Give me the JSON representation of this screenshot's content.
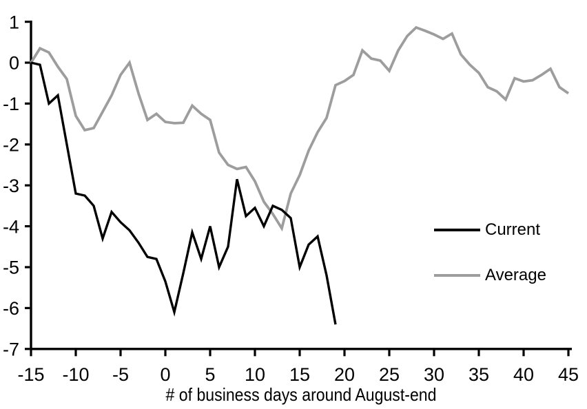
{
  "chart_data": {
    "type": "line",
    "title": "",
    "xlabel": "# of business days around August-end",
    "ylabel": "",
    "xlim": [
      -15,
      45
    ],
    "ylim": [
      -7,
      1
    ],
    "x_ticks": [
      -15,
      -10,
      -5,
      0,
      5,
      10,
      15,
      20,
      25,
      30,
      35,
      40,
      45
    ],
    "y_ticks": [
      1,
      0,
      -1,
      -2,
      -3,
      -4,
      -5,
      -6,
      -7
    ],
    "grid": false,
    "legend_position": "center-right",
    "series": [
      {
        "name": "Current",
        "color": "#000000",
        "x": [
          -15,
          -14,
          -13,
          -12,
          -11,
          -10,
          -9,
          -8,
          -7,
          -6,
          -5,
          -4,
          -3,
          -2,
          -1,
          0,
          1,
          2,
          3,
          4,
          5,
          6,
          7,
          8,
          9,
          10,
          11,
          12,
          13,
          14,
          15,
          16,
          17,
          18,
          19
        ],
        "values": [
          0,
          -0.05,
          -1.0,
          -0.8,
          -2.0,
          -3.2,
          -3.25,
          -3.5,
          -4.3,
          -3.65,
          -3.9,
          -4.1,
          -4.4,
          -4.75,
          -4.8,
          -5.35,
          -6.1,
          -5.15,
          -4.15,
          -4.8,
          -4.0,
          -5.0,
          -4.5,
          -2.85,
          -3.75,
          -3.55,
          -4.0,
          -3.5,
          -3.6,
          -3.8,
          -5.0,
          -4.45,
          -4.25,
          -5.2,
          -6.4
        ]
      },
      {
        "name": "Average",
        "color": "#9d9d9d",
        "x": [
          -15,
          -14,
          -13,
          -12,
          -11,
          -10,
          -9,
          -8,
          -7,
          -6,
          -5,
          -4,
          -3,
          -2,
          -1,
          0,
          1,
          2,
          3,
          4,
          5,
          6,
          7,
          8,
          9,
          10,
          11,
          12,
          13,
          14,
          15,
          16,
          17,
          18,
          19,
          20,
          21,
          22,
          23,
          24,
          25,
          26,
          27,
          28,
          29,
          30,
          31,
          32,
          33,
          34,
          35,
          36,
          37,
          38,
          39,
          40,
          41,
          42,
          43,
          44,
          45
        ],
        "values": [
          0,
          0.35,
          0.25,
          -0.1,
          -0.4,
          -1.3,
          -1.65,
          -1.6,
          -1.2,
          -0.8,
          -0.3,
          0.0,
          -0.75,
          -1.4,
          -1.25,
          -1.45,
          -1.48,
          -1.47,
          -1.05,
          -1.25,
          -1.4,
          -2.2,
          -2.5,
          -2.6,
          -2.55,
          -2.9,
          -3.4,
          -3.7,
          -4.05,
          -3.2,
          -2.75,
          -2.15,
          -1.7,
          -1.35,
          -0.55,
          -0.45,
          -0.3,
          0.3,
          0.1,
          0.05,
          -0.2,
          0.3,
          0.65,
          0.86,
          0.78,
          0.69,
          0.58,
          0.71,
          0.2,
          -0.05,
          -0.25,
          -0.6,
          -0.7,
          -0.9,
          -0.38,
          -0.46,
          -0.43,
          -0.3,
          -0.15,
          -0.6,
          -0.75
        ]
      }
    ]
  },
  "colors": {
    "axis": "#000000",
    "background": "#ffffff",
    "current_line": "#000000",
    "average_line": "#9d9d9d"
  }
}
